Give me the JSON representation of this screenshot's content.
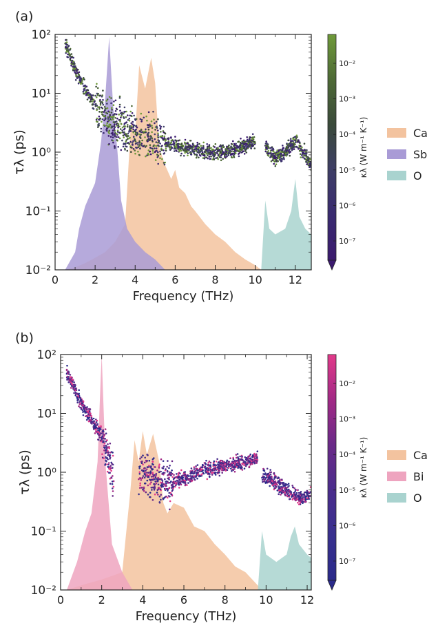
{
  "chart_data": [
    {
      "type": "scatter",
      "panel_label": "(a)",
      "xlabel": "Frequency (THz)",
      "ylabel": "τλ (ps)",
      "xlim": [
        0,
        12.8
      ],
      "ylim": [
        0.01,
        100
      ],
      "yscale": "log",
      "xticks": [
        0,
        2,
        4,
        6,
        8,
        10,
        12
      ],
      "yticks": [
        "10⁻²",
        "10⁻¹",
        "10⁰",
        "10¹",
        "10²"
      ],
      "colorbar": {
        "label": "κλ (W m⁻¹ K⁻¹)",
        "ticks": [
          "10⁻²",
          "10⁻³",
          "10⁻⁴",
          "10⁻⁵",
          "10⁻⁶",
          "10⁻⁷"
        ],
        "colors": [
          "#3b1a6e",
          "#3a2b70",
          "#3e3e66",
          "#3a4a3a",
          "#4e6a36",
          "#6f9a3a"
        ]
      },
      "legend": {
        "position": "right",
        "entries": [
          {
            "name": "Ca",
            "color": "#f3c39f"
          },
          {
            "name": "Sb",
            "color": "#a99bd6"
          },
          {
            "name": "O",
            "color": "#a9d3cf"
          }
        ]
      },
      "pdos_shapes": [
        {
          "name": "Ca",
          "x": [
            0.5,
            1.0,
            1.5,
            2.0,
            2.5,
            3.0,
            3.5,
            3.8,
            4.0,
            4.2,
            4.5,
            4.8,
            5.0,
            5.2,
            5.5,
            5.8,
            6.0,
            6.2,
            6.5,
            6.8,
            7.0,
            7.5,
            8.0,
            8.5,
            9.0,
            9.5,
            10.0,
            10.3
          ],
          "y": [
            0.01,
            0.011,
            0.013,
            0.016,
            0.02,
            0.03,
            0.06,
            3.5,
            2.0,
            30,
            12,
            40,
            15,
            1.2,
            0.6,
            0.35,
            0.5,
            0.25,
            0.2,
            0.12,
            0.1,
            0.06,
            0.04,
            0.03,
            0.02,
            0.015,
            0.012,
            0.01
          ]
        },
        {
          "name": "Sb",
          "x": [
            0.5,
            1.0,
            1.2,
            1.5,
            2.0,
            2.3,
            2.5,
            2.7,
            2.9,
            3.1,
            3.3,
            3.6,
            4.0,
            4.5,
            5.0,
            5.5
          ],
          "y": [
            0.01,
            0.02,
            0.05,
            0.12,
            0.3,
            1.5,
            8,
            90,
            6,
            1.2,
            0.15,
            0.05,
            0.03,
            0.02,
            0.015,
            0.01
          ]
        },
        {
          "name": "O",
          "x": [
            10.3,
            10.5,
            10.7,
            11.0,
            11.5,
            11.8,
            12.0,
            12.2,
            12.5,
            12.8
          ],
          "y": [
            0.01,
            0.15,
            0.05,
            0.04,
            0.05,
            0.1,
            0.35,
            0.08,
            0.05,
            0.04
          ]
        }
      ],
      "scatter_trends": [
        {
          "x": [
            0.5,
            1.0,
            1.5,
            2.0,
            2.5,
            3.0,
            3.5,
            4.0,
            5.0,
            6.0,
            7.0,
            8.0,
            9.0,
            10.0
          ],
          "y": [
            70,
            25,
            12,
            6,
            4,
            3,
            2.5,
            2,
            1.6,
            1.3,
            1.1,
            1.0,
            1.1,
            1.5
          ]
        },
        {
          "x": [
            10.5,
            11.0,
            11.5,
            12.0,
            12.5,
            12.8
          ],
          "y": [
            1.2,
            0.8,
            1.0,
            1.5,
            0.9,
            0.6
          ]
        }
      ]
    },
    {
      "type": "scatter",
      "panel_label": "(b)",
      "xlabel": "Frequency (THz)",
      "ylabel": "τλ (ps)",
      "xlim": [
        0,
        12.2
      ],
      "ylim": [
        0.01,
        100
      ],
      "yscale": "log",
      "xticks": [
        0,
        2,
        4,
        6,
        8,
        10,
        12
      ],
      "yticks": [
        "10⁻²",
        "10⁻¹",
        "10⁰",
        "10¹",
        "10²"
      ],
      "colorbar": {
        "label": "κλ (W m⁻¹ K⁻¹)",
        "ticks": [
          "10⁻²",
          "10⁻³",
          "10⁻⁴",
          "10⁻⁵",
          "10⁻⁶",
          "10⁻⁷"
        ],
        "colors": [
          "#2a2a8a",
          "#38308e",
          "#4a2c8c",
          "#6a2a88",
          "#a22a86",
          "#e23a8a"
        ]
      },
      "legend": {
        "position": "right",
        "entries": [
          {
            "name": "Ca",
            "color": "#f3c39f"
          },
          {
            "name": "Bi",
            "color": "#eea4bf"
          },
          {
            "name": "O",
            "color": "#a9d3cf"
          }
        ]
      },
      "pdos_shapes": [
        {
          "name": "Ca",
          "x": [
            0.3,
            1.0,
            2.0,
            3.0,
            3.4,
            3.6,
            3.8,
            4.0,
            4.2,
            4.5,
            4.8,
            5.0,
            5.2,
            5.5,
            6.0,
            6.5,
            7.0,
            7.5,
            8.0,
            8.5,
            9.0,
            9.5,
            9.8
          ],
          "y": [
            0.01,
            0.012,
            0.015,
            0.02,
            0.5,
            3.5,
            1.5,
            5,
            2,
            4.5,
            1.5,
            0.3,
            0.2,
            0.3,
            0.25,
            0.12,
            0.1,
            0.06,
            0.04,
            0.025,
            0.02,
            0.013,
            0.01
          ]
        },
        {
          "name": "Bi",
          "x": [
            0.3,
            0.8,
            1.2,
            1.5,
            1.8,
            1.95,
            2.0,
            2.05,
            2.2,
            2.5,
            3.0,
            3.5
          ],
          "y": [
            0.01,
            0.03,
            0.1,
            0.2,
            1.5,
            40,
            100,
            30,
            1.2,
            0.06,
            0.02,
            0.01
          ]
        },
        {
          "name": "O",
          "x": [
            9.6,
            9.8,
            10.0,
            10.5,
            11.0,
            11.2,
            11.4,
            11.6,
            12.0,
            12.2
          ],
          "y": [
            0.01,
            0.1,
            0.04,
            0.03,
            0.04,
            0.08,
            0.12,
            0.06,
            0.04,
            0.035
          ]
        }
      ],
      "scatter_trends": [
        {
          "x": [
            0.3,
            0.6,
            1.0,
            1.5,
            2.0,
            2.3,
            2.6
          ],
          "y": [
            50,
            30,
            15,
            8,
            4,
            2,
            0.8
          ]
        },
        {
          "x": [
            3.8,
            4.5,
            5.0,
            6.0,
            7.0,
            8.0,
            9.0,
            9.6
          ],
          "y": [
            1.0,
            0.8,
            0.6,
            0.8,
            1.1,
            1.3,
            1.5,
            1.8
          ]
        },
        {
          "x": [
            9.8,
            10.2,
            10.6,
            11.0,
            11.4,
            11.8,
            12.2
          ],
          "y": [
            0.9,
            0.8,
            0.6,
            0.5,
            0.4,
            0.35,
            0.45
          ]
        }
      ]
    }
  ]
}
